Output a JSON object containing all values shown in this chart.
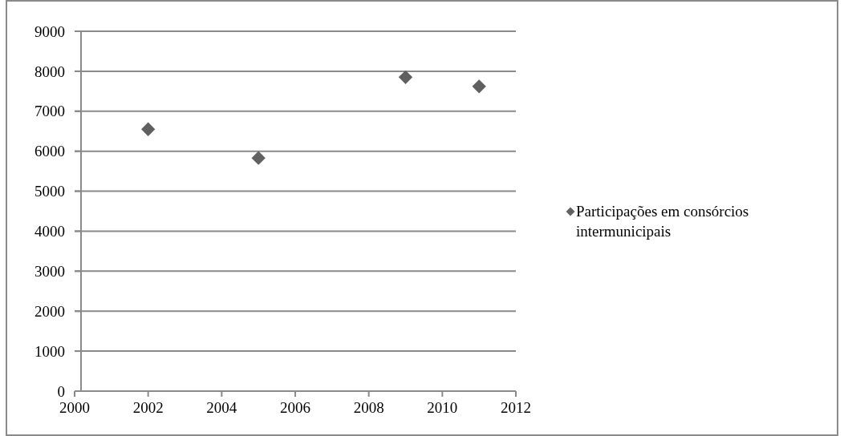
{
  "chart_data": {
    "type": "scatter",
    "x": [
      2002,
      2005,
      2009,
      2011
    ],
    "series": [
      {
        "name": "Participações em consórcios intermunicipais",
        "color": "#606060",
        "values": [
          6550,
          5830,
          7850,
          7620
        ]
      }
    ],
    "xlim": [
      2000,
      2012
    ],
    "xticks": [
      2000,
      2002,
      2004,
      2006,
      2008,
      2010,
      2012
    ],
    "ylim": [
      0,
      9000
    ],
    "yticks": [
      0,
      1000,
      2000,
      3000,
      4000,
      5000,
      6000,
      7000,
      8000,
      9000
    ],
    "grid": "y",
    "legend": "right",
    "marker": "diamond"
  }
}
